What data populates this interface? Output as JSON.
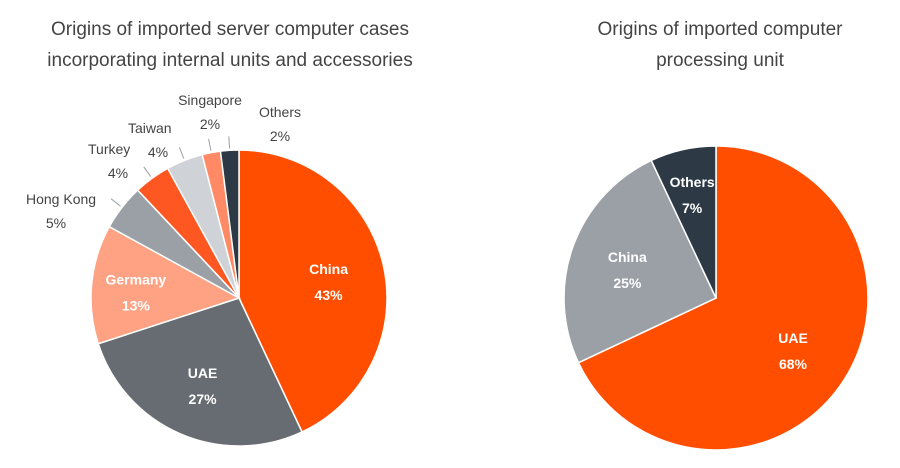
{
  "chart_data": [
    {
      "type": "pie",
      "title": "Origins of imported server computer cases incorporating internal units and accessories",
      "unit": "%",
      "slices": [
        {
          "name": "China",
          "value": 43,
          "label": "43%",
          "color": "#FF4E00"
        },
        {
          "name": "UAE",
          "value": 27,
          "label": "27%",
          "color": "#676C72"
        },
        {
          "name": "Germany",
          "value": 13,
          "label": "13%",
          "color": "#FFA284"
        },
        {
          "name": "Hong Kong",
          "value": 5,
          "label": "5%",
          "color": "#9AA0A6"
        },
        {
          "name": "Turkey",
          "value": 4,
          "label": "4%",
          "color": "#FF5722"
        },
        {
          "name": "Taiwan",
          "value": 4,
          "label": "4%",
          "color": "#CFD2D6"
        },
        {
          "name": "Singapore",
          "value": 2,
          "label": "2%",
          "color": "#FF8A65"
        },
        {
          "name": "Others",
          "value": 2,
          "label": "2%",
          "color": "#2D3A45"
        }
      ]
    },
    {
      "type": "pie",
      "title": "Origins of imported computer processing unit",
      "unit": "%",
      "slices": [
        {
          "name": "UAE",
          "value": 68,
          "label": "68%",
          "color": "#FF4E00"
        },
        {
          "name": "China",
          "value": 25,
          "label": "25%",
          "color": "#9AA0A6"
        },
        {
          "name": "Others",
          "value": 7,
          "label": "7%",
          "color": "#2D3A45"
        }
      ]
    }
  ]
}
